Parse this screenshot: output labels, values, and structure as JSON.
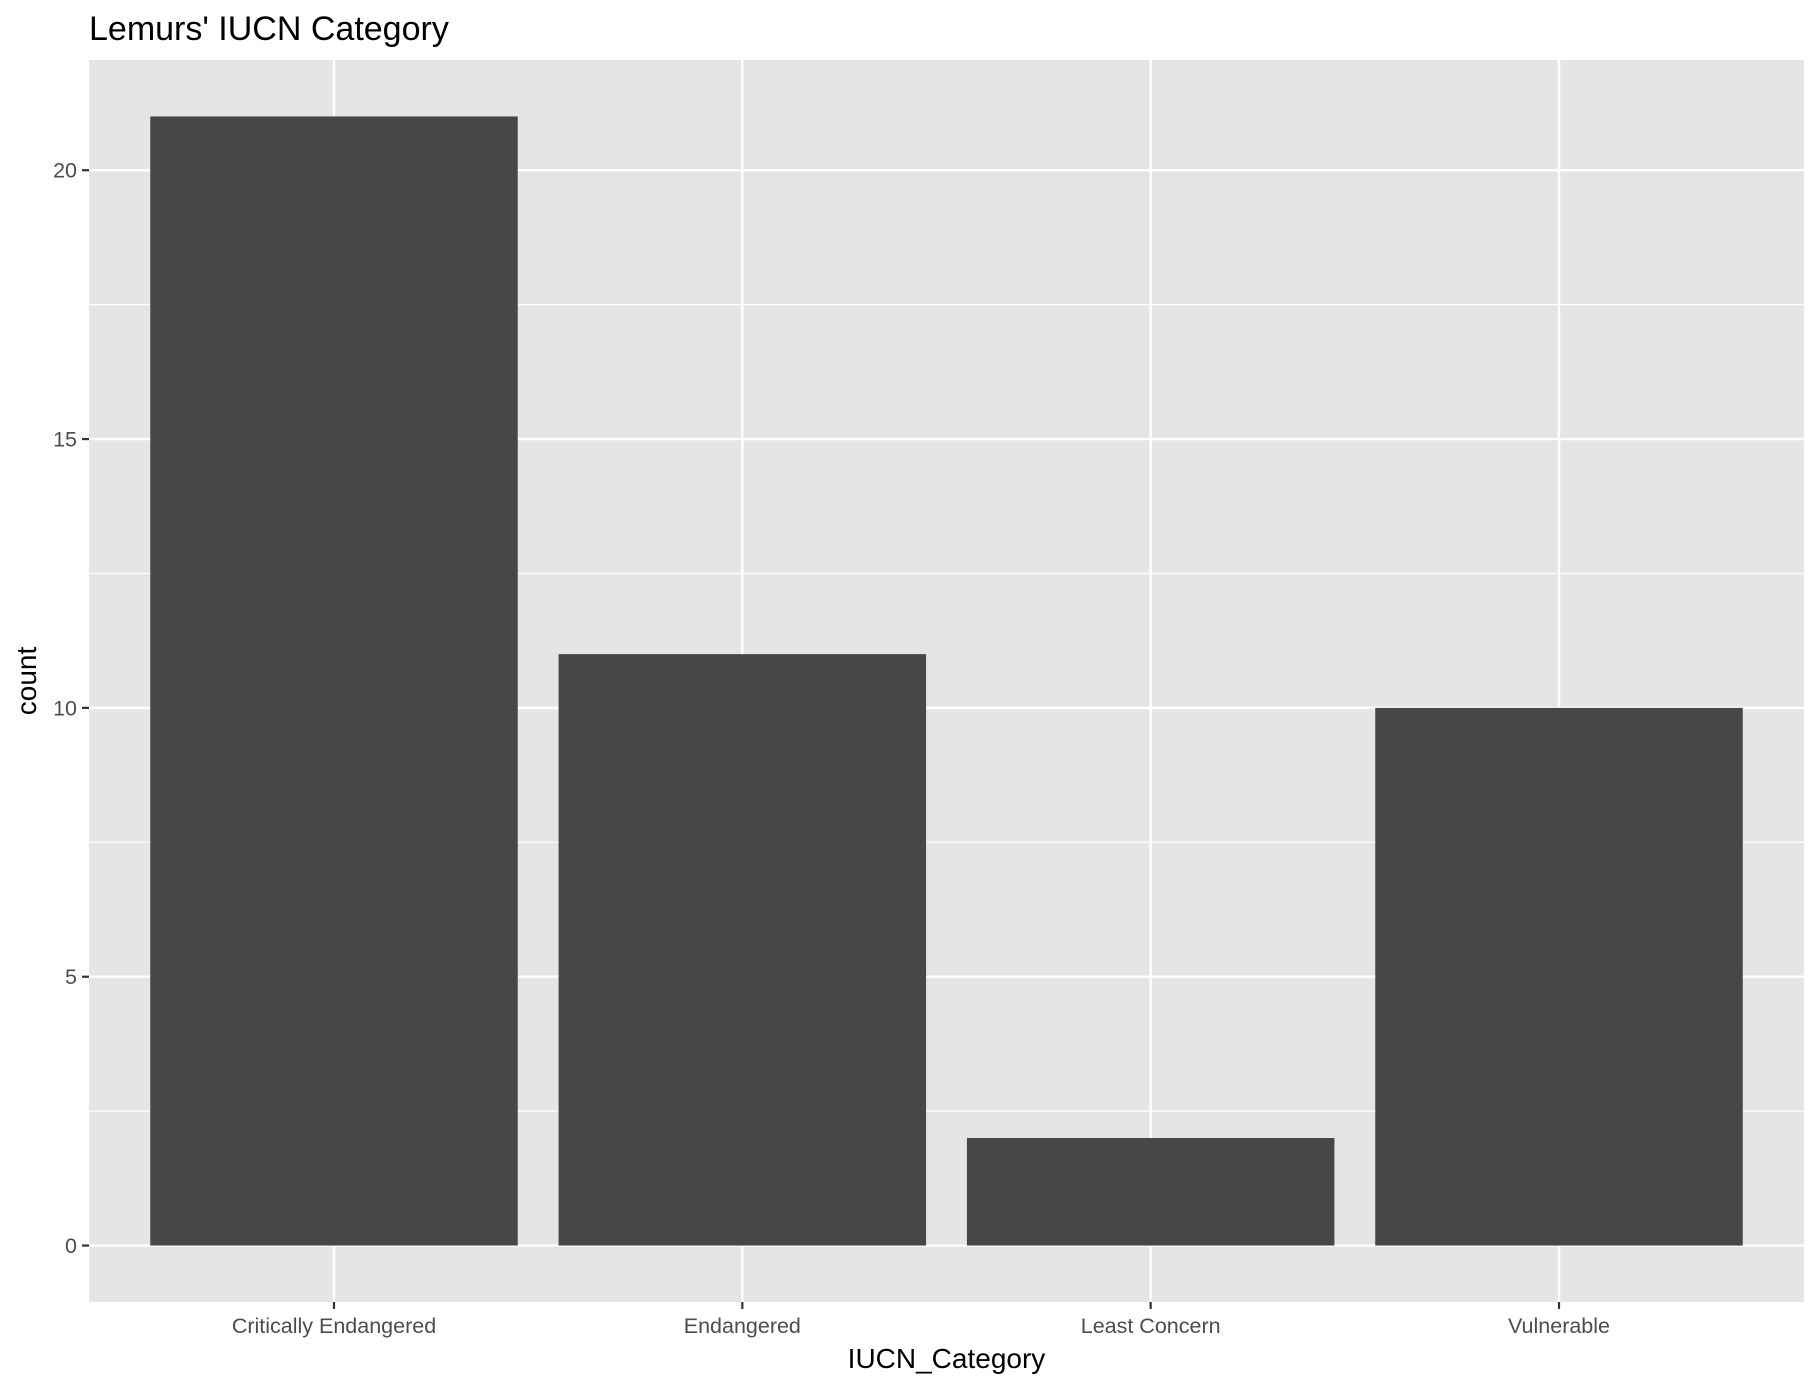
{
  "chart_data": {
    "type": "bar",
    "title": "Lemurs' IUCN Category",
    "xlabel": "IUCN_Category",
    "ylabel": "count",
    "categories": [
      "Critically Endangered",
      "Endangered",
      "Least Concern",
      "Vulnerable"
    ],
    "values": [
      21,
      11,
      2,
      10
    ],
    "ylim": [
      -1.05,
      22.05
    ],
    "yticks": [
      0,
      5,
      10,
      15,
      20
    ],
    "grid": true,
    "legend": "none",
    "colors": {
      "bar": "#474747",
      "panel": "#e5e5e5",
      "grid": "#ffffff",
      "tick_label": "#4d4d4d",
      "tick": "#333333"
    }
  }
}
